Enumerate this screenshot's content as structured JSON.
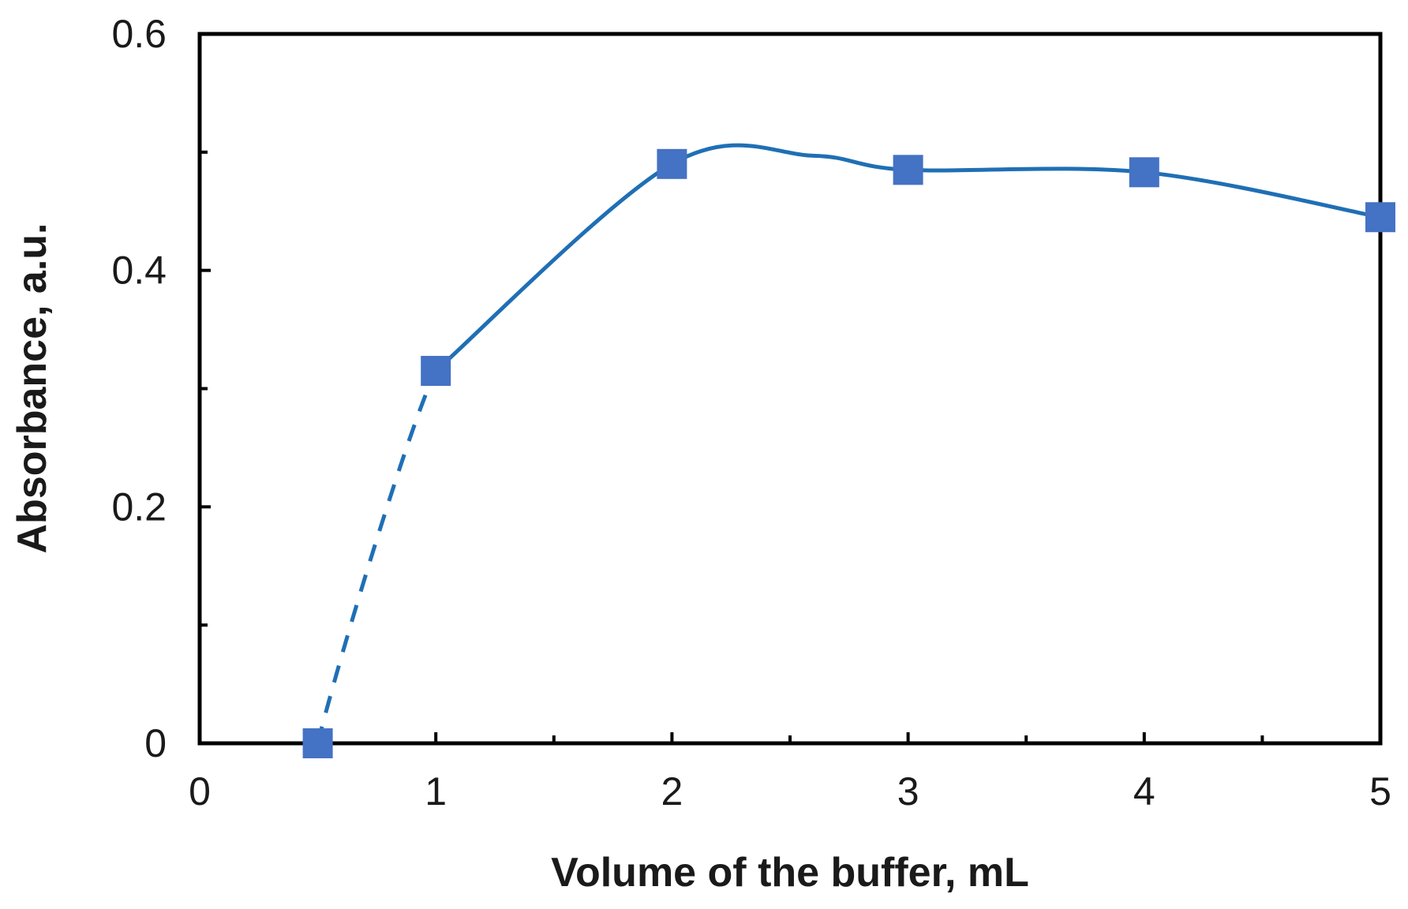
{
  "chart_data": {
    "type": "scatter",
    "xlabel": "Volume of the buffer, mL",
    "ylabel": "Absorbance, a.u.",
    "xlim": [
      0,
      5
    ],
    "ylim": [
      0,
      0.6
    ],
    "x_ticks": [
      0,
      1,
      2,
      3,
      4,
      5
    ],
    "x_tick_labels": [
      "0",
      "1",
      "2",
      "3",
      "4",
      "5"
    ],
    "x_minor_ticks": [
      0.5,
      1.5,
      2.5,
      3.5,
      4.5
    ],
    "y_ticks": [
      0,
      0.2,
      0.4,
      0.6
    ],
    "y_tick_labels": [
      "0",
      "0.2",
      "0.4",
      "0.6"
    ],
    "y_minor_ticks": [
      0.1,
      0.3,
      0.5
    ],
    "grid": false,
    "legend": "none",
    "series": [
      {
        "x": [
          0.5,
          1,
          2,
          3,
          4,
          5
        ],
        "y": [
          0.0,
          0.315,
          0.49,
          0.485,
          0.483,
          0.445
        ],
        "marker": "square",
        "color": "#4472C4",
        "line_color": "#1F6FB5",
        "fit_dashed_segment": [
          0.5,
          1
        ],
        "fit_solid_segment": [
          1,
          5
        ]
      }
    ]
  }
}
